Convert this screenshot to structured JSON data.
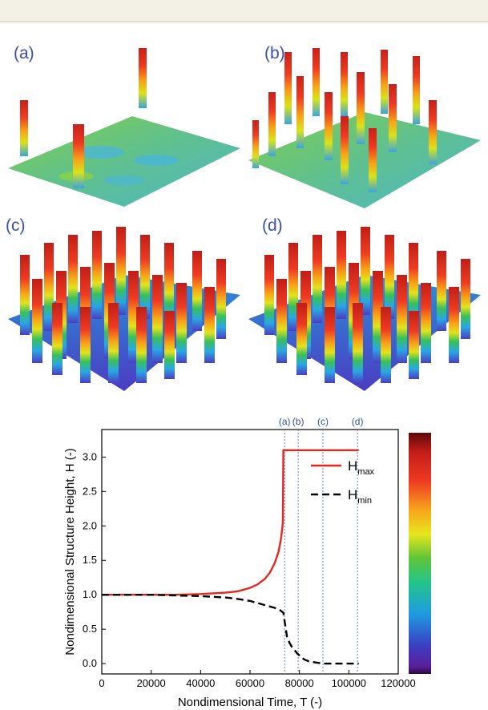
{
  "panels": [
    {
      "id": "a",
      "label": "(a)"
    },
    {
      "id": "b",
      "label": "(b)"
    },
    {
      "id": "c",
      "label": "(c)"
    },
    {
      "id": "d",
      "label": "(d)"
    }
  ],
  "colors": {
    "hmax": "#e8261c",
    "hmin": "#000000",
    "markers": "#6d7bcc",
    "marker_labels": "#3a4fa8"
  },
  "chart_data": {
    "type": "line",
    "xlabel": "Nondimensional Time, T (-)",
    "ylabel": "Nondimensional Structure Height, H (-)",
    "xlim": [
      0,
      120000
    ],
    "ylim": [
      -0.15,
      3.4
    ],
    "xticks": [
      0,
      20000,
      40000,
      60000,
      80000,
      100000,
      120000
    ],
    "xtick_labels": [
      "0",
      "20000",
      "40000",
      "60000",
      "80000",
      "100000",
      "120000"
    ],
    "yticks": [
      0.0,
      0.5,
      1.0,
      1.5,
      2.0,
      2.5,
      3.0
    ],
    "ytick_labels": [
      "0.0",
      "0.5",
      "1.0",
      "1.5",
      "2.0",
      "2.5",
      "3.0"
    ],
    "legend_position": "top-right",
    "grid": false,
    "colorbar": true,
    "series": [
      {
        "name": "H_max",
        "legend_main": "H",
        "legend_sub": "max",
        "style": "solid",
        "x": [
          0,
          10000,
          20000,
          30000,
          40000,
          50000,
          55000,
          60000,
          63000,
          66000,
          68000,
          70000,
          71500,
          72500,
          73000,
          73300,
          73500,
          73600,
          80000,
          90000,
          100000,
          104000
        ],
        "y": [
          1.0,
          1.0,
          1.0,
          1.0,
          1.01,
          1.03,
          1.05,
          1.1,
          1.15,
          1.23,
          1.32,
          1.46,
          1.62,
          1.8,
          1.95,
          2.05,
          3.1,
          3.1,
          3.1,
          3.1,
          3.1,
          3.1
        ]
      },
      {
        "name": "H_min",
        "legend_main": "H",
        "legend_sub": "min",
        "style": "dashed",
        "x": [
          0,
          20000,
          30000,
          40000,
          50000,
          55000,
          60000,
          63000,
          66000,
          68000,
          70000,
          72000,
          73500,
          74500,
          75000,
          75500,
          76000,
          76500,
          77000,
          78000,
          79000,
          80000,
          82000,
          84000,
          86000,
          88000,
          90000,
          95000,
          100000,
          104000
        ],
        "y": [
          1.0,
          1.0,
          0.99,
          0.98,
          0.96,
          0.94,
          0.91,
          0.88,
          0.85,
          0.83,
          0.81,
          0.78,
          0.74,
          0.5,
          0.38,
          0.35,
          0.3,
          0.27,
          0.24,
          0.2,
          0.15,
          0.12,
          0.06,
          0.03,
          0.02,
          0.01,
          0.0,
          0.0,
          0.0,
          0.0
        ]
      }
    ],
    "markers": [
      {
        "label": "(a)",
        "x": 74000
      },
      {
        "label": "(b)",
        "x": 79500
      },
      {
        "label": "(c)",
        "x": 89500
      },
      {
        "label": "(d)",
        "x": 103500
      }
    ]
  }
}
